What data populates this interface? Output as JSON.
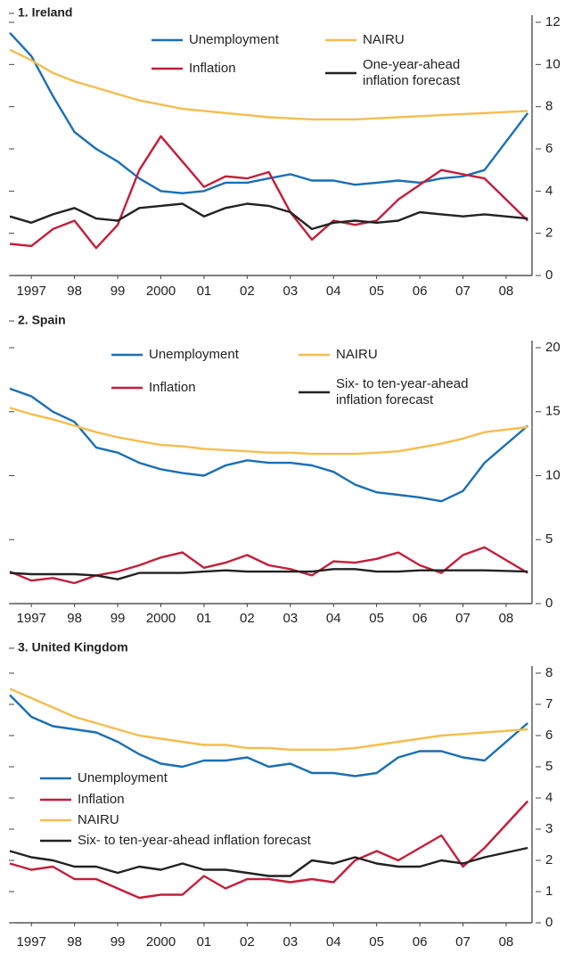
{
  "chart_data": [
    {
      "type": "line",
      "title": "1. Ireland",
      "x": [
        1997,
        1997.5,
        1998,
        1998.5,
        1999,
        1999.5,
        2000,
        2000.5,
        2001,
        2001.5,
        2002,
        2002.5,
        2003,
        2003.5,
        2004,
        2004.5,
        2005,
        2005.5,
        2006,
        2006.5,
        2007,
        2007.5,
        2008,
        2009
      ],
      "series": [
        {
          "name": "Unemployment",
          "color": "#1a6fb5",
          "values": [
            11.5,
            10.4,
            8.5,
            6.8,
            6.0,
            5.4,
            4.6,
            4.0,
            3.9,
            4.0,
            4.4,
            4.4,
            4.6,
            4.8,
            4.5,
            4.5,
            4.3,
            4.4,
            4.5,
            4.4,
            4.6,
            4.7,
            5.0,
            7.7
          ]
        },
        {
          "name": "Inflation",
          "color": "#c41e3a",
          "values": [
            1.5,
            1.4,
            2.2,
            2.6,
            1.3,
            2.4,
            5.0,
            6.6,
            5.4,
            4.2,
            4.7,
            4.6,
            4.9,
            3.0,
            1.7,
            2.6,
            2.4,
            2.6,
            3.6,
            4.3,
            5.0,
            4.8,
            4.6,
            2.6
          ]
        },
        {
          "name": "NAIRU",
          "color": "#f5bd4f",
          "values": [
            10.7,
            10.2,
            9.6,
            9.2,
            8.9,
            8.6,
            8.3,
            8.1,
            7.9,
            7.8,
            7.7,
            7.6,
            7.5,
            7.45,
            7.4,
            7.4,
            7.4,
            7.45,
            7.5,
            7.55,
            7.6,
            7.65,
            7.7,
            7.8
          ]
        },
        {
          "name": "One-year-ahead inflation forecast",
          "color": "#222222",
          "values": [
            2.8,
            2.5,
            2.9,
            3.2,
            2.7,
            2.6,
            3.2,
            3.3,
            3.4,
            2.8,
            3.2,
            3.4,
            3.3,
            3.0,
            2.2,
            2.5,
            2.6,
            2.5,
            2.6,
            3.0,
            2.9,
            2.8,
            2.9,
            2.7
          ]
        }
      ],
      "xlim": [
        1997,
        2009.1
      ],
      "xticks": [
        {
          "value": 1997.5,
          "label": "1997"
        },
        {
          "value": 1998.5,
          "label": "98"
        },
        {
          "value": 1999.5,
          "label": "99"
        },
        {
          "value": 2000.5,
          "label": "2000"
        },
        {
          "value": 2001.5,
          "label": "01"
        },
        {
          "value": 2002.5,
          "label": "02"
        },
        {
          "value": 2003.5,
          "label": "03"
        },
        {
          "value": 2004.5,
          "label": "04"
        },
        {
          "value": 2005.5,
          "label": "05"
        },
        {
          "value": 2006.5,
          "label": "06"
        },
        {
          "value": 2007.5,
          "label": "07"
        },
        {
          "value": 2008.5,
          "label": "08"
        }
      ],
      "ylim": [
        0,
        12
      ],
      "yticks": [
        0,
        2,
        4,
        6,
        8,
        10,
        12
      ]
    },
    {
      "type": "line",
      "title": "2. Spain",
      "x": [
        1997,
        1997.5,
        1998,
        1998.5,
        1999,
        1999.5,
        2000,
        2000.5,
        2001,
        2001.5,
        2002,
        2002.5,
        2003,
        2003.5,
        2004,
        2004.5,
        2005,
        2005.5,
        2006,
        2006.5,
        2007,
        2007.5,
        2008,
        2009
      ],
      "series": [
        {
          "name": "Unemployment",
          "color": "#1a6fb5",
          "values": [
            16.8,
            16.2,
            15.0,
            14.2,
            12.2,
            11.8,
            11.0,
            10.5,
            10.2,
            10.0,
            10.8,
            11.2,
            11.0,
            11.0,
            10.8,
            10.3,
            9.3,
            8.7,
            8.5,
            8.3,
            8.0,
            8.8,
            11.0,
            13.9
          ]
        },
        {
          "name": "Inflation",
          "color": "#c41e3a",
          "values": [
            2.5,
            1.8,
            2.0,
            1.6,
            2.2,
            2.5,
            3.0,
            3.6,
            4.0,
            2.8,
            3.2,
            3.8,
            3.0,
            2.7,
            2.2,
            3.3,
            3.2,
            3.5,
            4.0,
            3.0,
            2.4,
            3.8,
            4.4,
            2.4
          ]
        },
        {
          "name": "NAIRU",
          "color": "#f5bd4f",
          "values": [
            15.3,
            14.8,
            14.4,
            13.9,
            13.4,
            13.0,
            12.7,
            12.4,
            12.3,
            12.1,
            12.0,
            11.9,
            11.8,
            11.8,
            11.7,
            11.7,
            11.7,
            11.8,
            11.9,
            12.2,
            12.5,
            12.9,
            13.4,
            13.8
          ]
        },
        {
          "name": "Six- to ten-year-ahead inflation forecast",
          "color": "#222222",
          "values": [
            2.4,
            2.3,
            2.3,
            2.3,
            2.2,
            1.9,
            2.4,
            2.4,
            2.4,
            2.5,
            2.6,
            2.5,
            2.5,
            2.5,
            2.5,
            2.7,
            2.7,
            2.5,
            2.5,
            2.6,
            2.6,
            2.6,
            2.6,
            2.5
          ]
        }
      ],
      "xlim": [
        1997,
        2009.1
      ],
      "xticks": [
        {
          "value": 1997.5,
          "label": "1997"
        },
        {
          "value": 1998.5,
          "label": "98"
        },
        {
          "value": 1999.5,
          "label": "99"
        },
        {
          "value": 2000.5,
          "label": "2000"
        },
        {
          "value": 2001.5,
          "label": "01"
        },
        {
          "value": 2002.5,
          "label": "02"
        },
        {
          "value": 2003.5,
          "label": "03"
        },
        {
          "value": 2004.5,
          "label": "04"
        },
        {
          "value": 2005.5,
          "label": "05"
        },
        {
          "value": 2006.5,
          "label": "06"
        },
        {
          "value": 2007.5,
          "label": "07"
        },
        {
          "value": 2008.5,
          "label": "08"
        }
      ],
      "ylim": [
        0,
        20
      ],
      "yticks": [
        0,
        5,
        10,
        15,
        20
      ]
    },
    {
      "type": "line",
      "title": "3. United Kingdom",
      "x": [
        1997,
        1997.5,
        1998,
        1998.5,
        1999,
        1999.5,
        2000,
        2000.5,
        2001,
        2001.5,
        2002,
        2002.5,
        2003,
        2003.5,
        2004,
        2004.5,
        2005,
        2005.5,
        2006,
        2006.5,
        2007,
        2007.5,
        2008,
        2009
      ],
      "series": [
        {
          "name": "Unemployment",
          "color": "#1a6fb5",
          "values": [
            7.3,
            6.6,
            6.3,
            6.2,
            6.1,
            5.8,
            5.4,
            5.1,
            5.0,
            5.2,
            5.2,
            5.3,
            5.0,
            5.1,
            4.8,
            4.8,
            4.7,
            4.8,
            5.3,
            5.5,
            5.5,
            5.3,
            5.2,
            6.4
          ]
        },
        {
          "name": "Inflation",
          "color": "#c41e3a",
          "values": [
            1.9,
            1.7,
            1.8,
            1.4,
            1.4,
            1.1,
            0.8,
            0.9,
            0.9,
            1.5,
            1.1,
            1.4,
            1.4,
            1.3,
            1.4,
            1.3,
            2.0,
            2.3,
            2.0,
            2.4,
            2.8,
            1.8,
            2.4,
            3.9
          ]
        },
        {
          "name": "NAIRU",
          "color": "#f5bd4f",
          "values": [
            7.5,
            7.2,
            6.9,
            6.6,
            6.4,
            6.2,
            6.0,
            5.9,
            5.8,
            5.7,
            5.7,
            5.6,
            5.6,
            5.55,
            5.55,
            5.55,
            5.6,
            5.7,
            5.8,
            5.9,
            6.0,
            6.05,
            6.1,
            6.2
          ]
        },
        {
          "name": "Six- to ten-year-ahead inflation forecast",
          "color": "#222222",
          "values": [
            2.3,
            2.1,
            2.0,
            1.8,
            1.8,
            1.6,
            1.8,
            1.7,
            1.9,
            1.7,
            1.7,
            1.6,
            1.5,
            1.5,
            2.0,
            1.9,
            2.1,
            1.9,
            1.8,
            1.8,
            2.0,
            1.9,
            2.1,
            2.4
          ]
        }
      ],
      "xlim": [
        1997,
        2009.1
      ],
      "xticks": [
        {
          "value": 1997.5,
          "label": "1997"
        },
        {
          "value": 1998.5,
          "label": "98"
        },
        {
          "value": 1999.5,
          "label": "99"
        },
        {
          "value": 2000.5,
          "label": "2000"
        },
        {
          "value": 2001.5,
          "label": "01"
        },
        {
          "value": 2002.5,
          "label": "02"
        },
        {
          "value": 2003.5,
          "label": "03"
        },
        {
          "value": 2004.5,
          "label": "04"
        },
        {
          "value": 2005.5,
          "label": "05"
        },
        {
          "value": 2006.5,
          "label": "06"
        },
        {
          "value": 2007.5,
          "label": "07"
        },
        {
          "value": 2008.5,
          "label": "08"
        }
      ],
      "ylim": [
        0,
        8
      ],
      "yticks": [
        0,
        1,
        2,
        3,
        4,
        5,
        6,
        7,
        8
      ]
    }
  ]
}
